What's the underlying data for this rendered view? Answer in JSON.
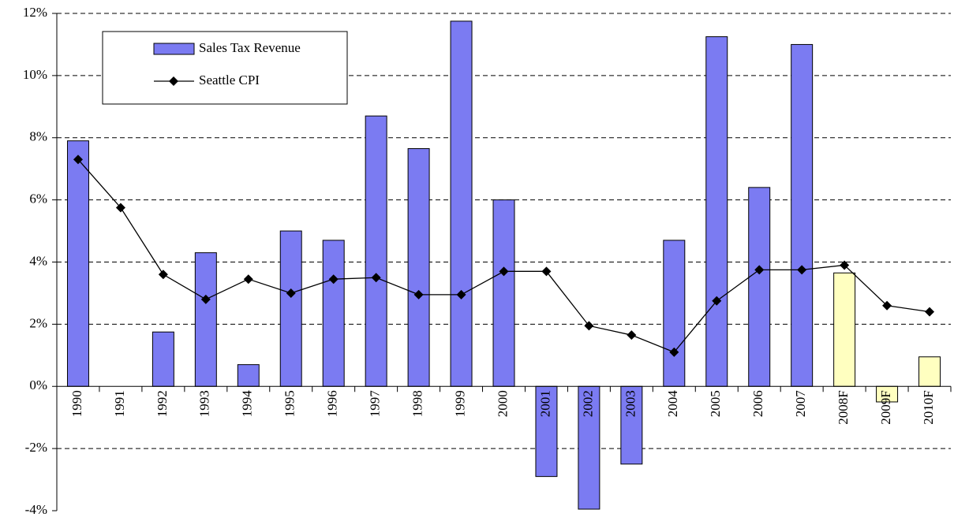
{
  "chart_data": {
    "type": "bar-line",
    "categories": [
      "1990",
      "1991",
      "1992",
      "1993",
      "1994",
      "1995",
      "1996",
      "1997",
      "1998",
      "1999",
      "2000",
      "2001",
      "2002",
      "2003",
      "2004",
      "2005",
      "2006",
      "2007",
      "2008F",
      "2009F",
      "2010F"
    ],
    "series": [
      {
        "name": "Sales Tax Revenue",
        "type": "bar",
        "color": "#7b7bf2",
        "colors": [
          "#7b7bf2",
          "#7b7bf2",
          "#7b7bf2",
          "#7b7bf2",
          "#7b7bf2",
          "#7b7bf2",
          "#7b7bf2",
          "#7b7bf2",
          "#7b7bf2",
          "#7b7bf2",
          "#7b7bf2",
          "#7b7bf2",
          "#7b7bf2",
          "#7b7bf2",
          "#7b7bf2",
          "#7b7bf2",
          "#7b7bf2",
          "#7b7bf2",
          "#ffffc0",
          "#ffffc0",
          "#ffffc0"
        ],
        "values": [
          7.9,
          0,
          1.75,
          4.3,
          0.7,
          5.0,
          4.7,
          8.7,
          7.65,
          11.75,
          6.0,
          -2.9,
          -3.95,
          -2.5,
          4.7,
          11.25,
          6.4,
          11.0,
          3.65,
          -0.5,
          0.95
        ]
      },
      {
        "name": "Seattle CPI",
        "type": "line",
        "color": "#000000",
        "marker": "diamond",
        "values": [
          7.3,
          5.75,
          3.6,
          2.8,
          3.45,
          3.0,
          3.45,
          3.5,
          2.95,
          2.95,
          3.7,
          3.7,
          1.95,
          1.65,
          1.1,
          2.75,
          3.75,
          3.75,
          3.9,
          2.6,
          2.4
        ]
      }
    ],
    "ylim": [
      -4,
      12
    ],
    "yticks": [
      {
        "value": -4,
        "label": "-4%"
      },
      {
        "value": -2,
        "label": "-2%"
      },
      {
        "value": 0,
        "label": "0%"
      },
      {
        "value": 2,
        "label": "2%"
      },
      {
        "value": 4,
        "label": "4%"
      },
      {
        "value": 6,
        "label": "6%"
      },
      {
        "value": 8,
        "label": "8%"
      },
      {
        "value": 10,
        "label": "10%"
      },
      {
        "value": 12,
        "label": "12%"
      }
    ],
    "grid": true,
    "legend": "top-left"
  }
}
